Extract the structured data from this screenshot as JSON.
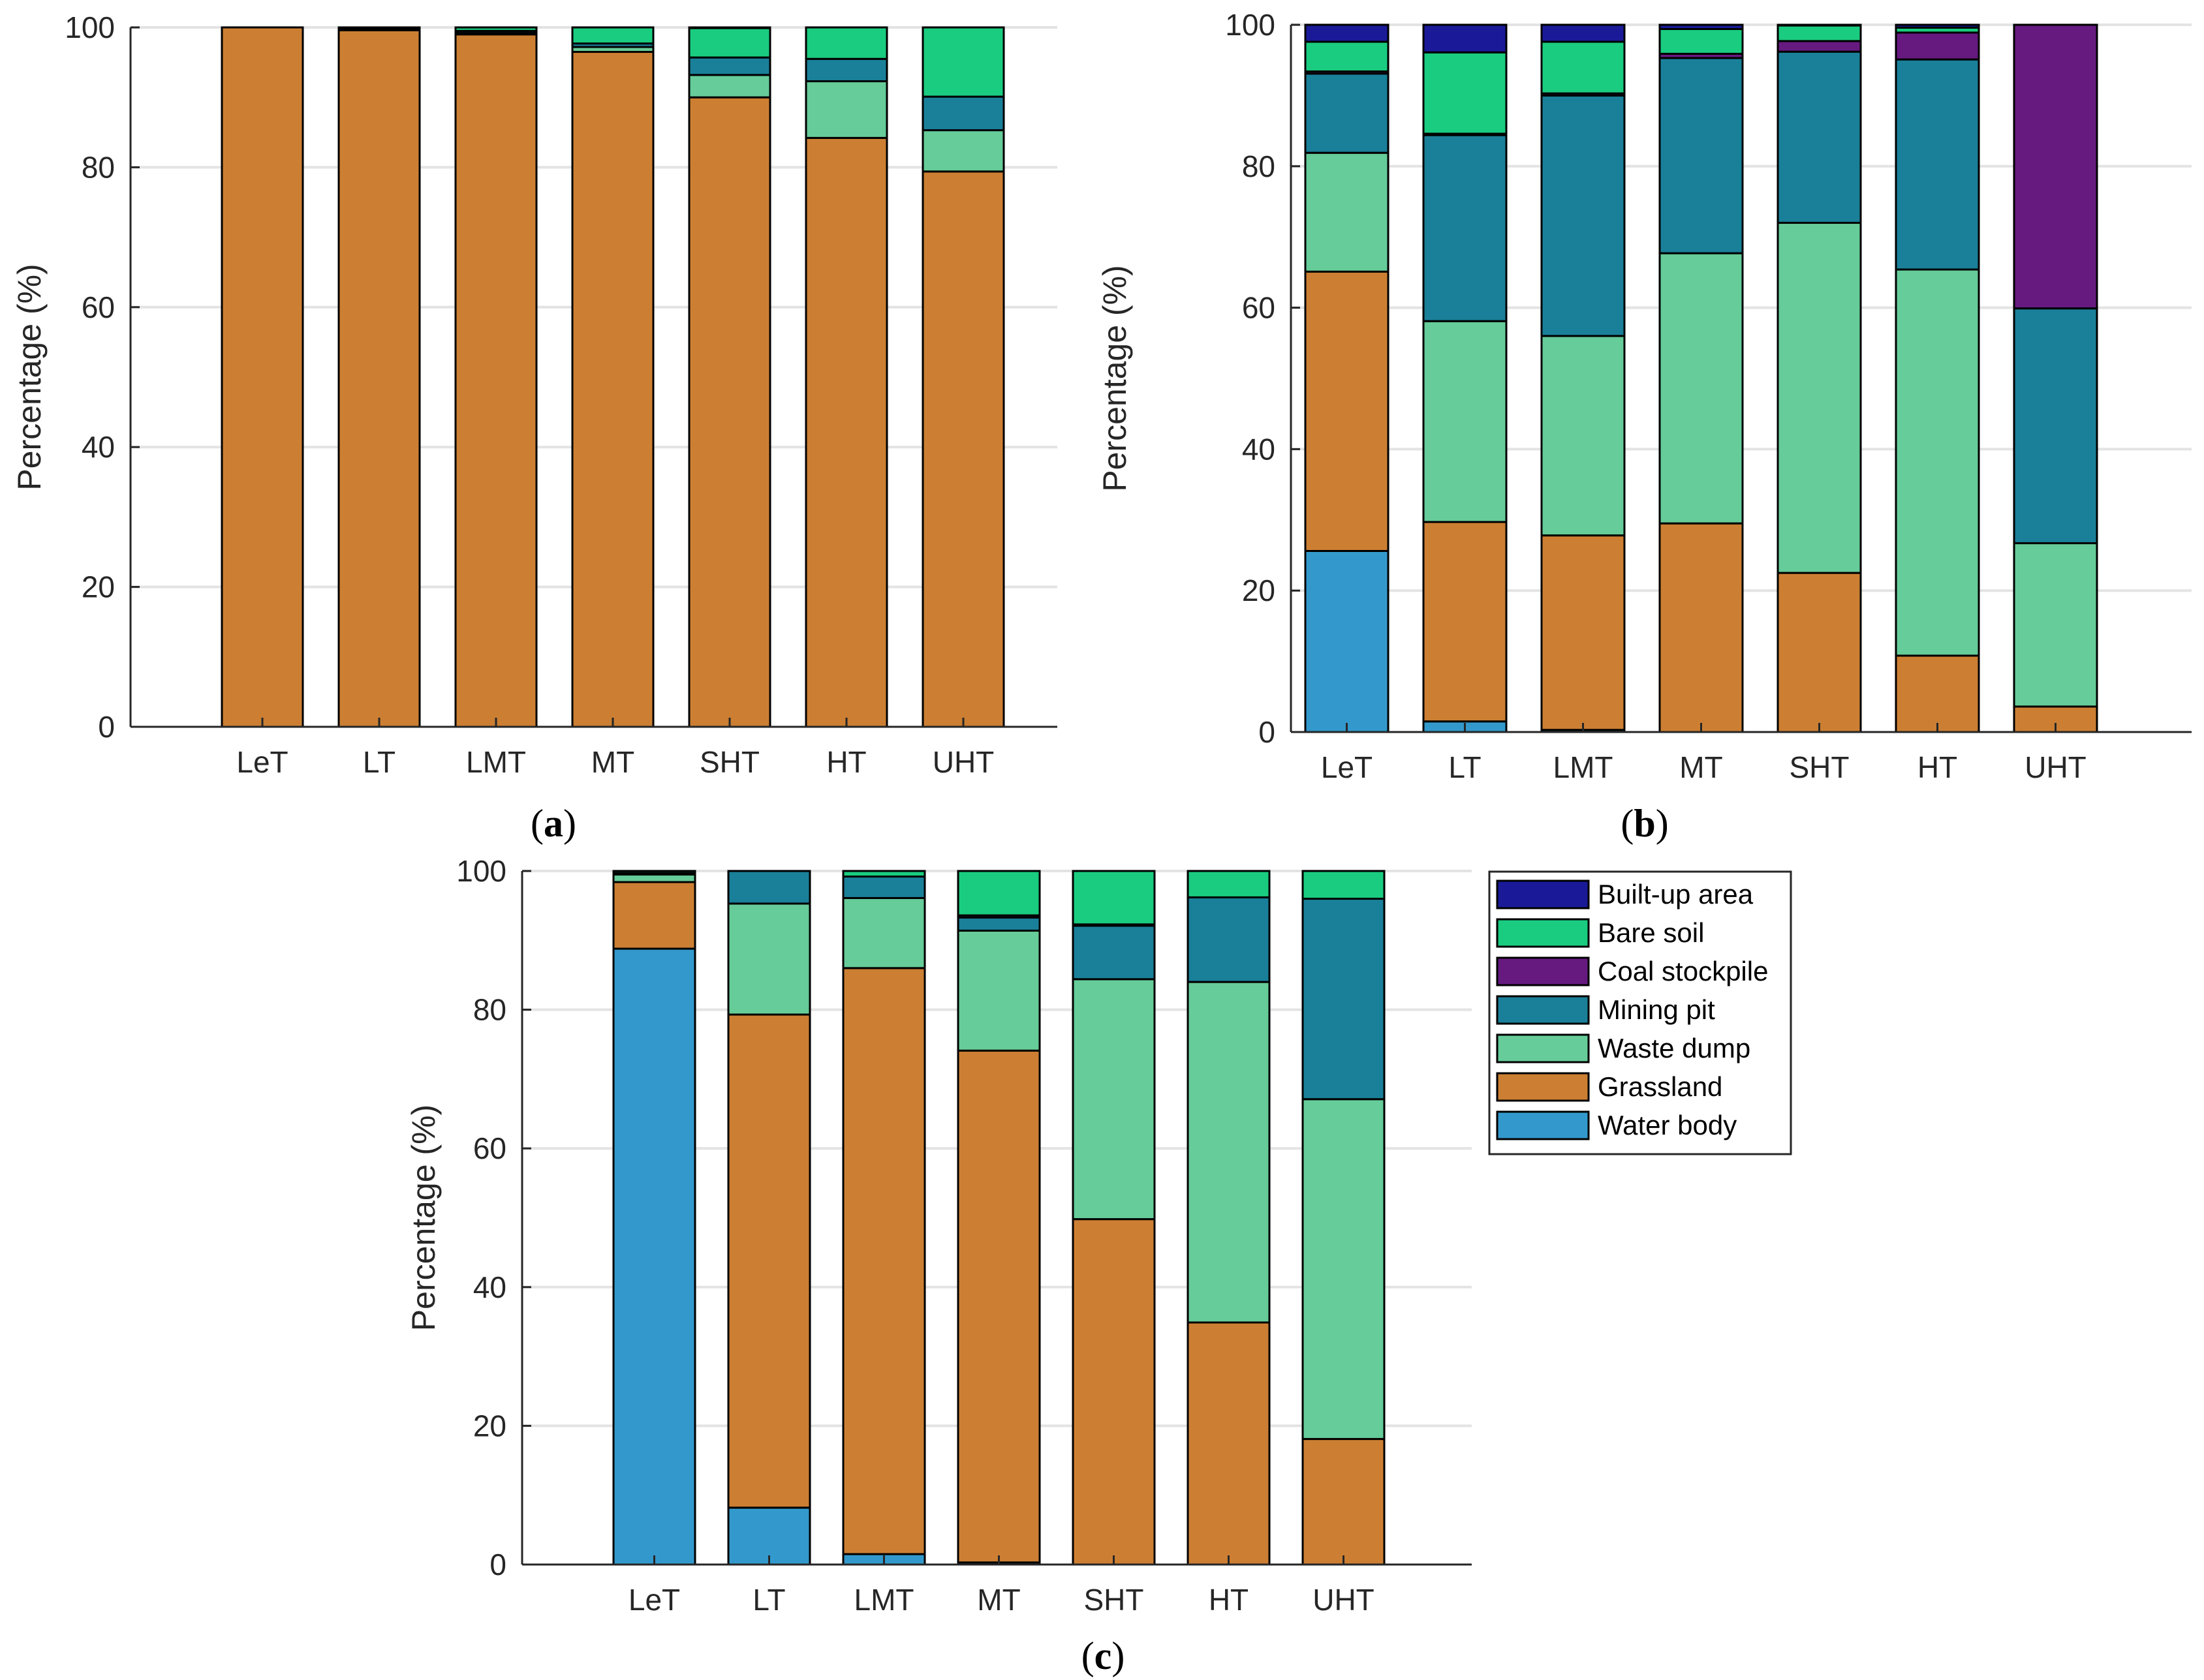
{
  "figure": {
    "legend_title_entries": [
      "Built-up area",
      "Bare soil",
      "Coal stockpile",
      "Mining pit",
      "Waste dump",
      "Grassland",
      "Water body"
    ]
  },
  "chart_data": [
    {
      "type": "bar",
      "stacked": true,
      "panel_label": "(a)",
      "categories": [
        "LeT",
        "LT",
        "LMT",
        "MT",
        "SHT",
        "HT",
        "UHT"
      ],
      "ylabel": "Percentage (%)",
      "xlabel": "",
      "ylim": [
        0,
        100
      ],
      "yticks": [
        0,
        20,
        40,
        60,
        80,
        100
      ],
      "grid": "y",
      "series": [
        {
          "name": "Water body",
          "color": "#3399cc",
          "values": [
            0,
            0,
            0,
            0,
            0,
            0,
            0
          ]
        },
        {
          "name": "Grassland",
          "color": "#cc7f33",
          "values": [
            100,
            99.6,
            99.0,
            96.5,
            90.0,
            84.2,
            79.4
          ]
        },
        {
          "name": "Waste dump",
          "color": "#66cc99",
          "values": [
            0,
            0.1,
            0.2,
            0.7,
            3.2,
            8.1,
            5.9
          ]
        },
        {
          "name": "Mining pit",
          "color": "#1a8099",
          "values": [
            0,
            0.1,
            0.3,
            0.5,
            2.5,
            3.2,
            4.8
          ]
        },
        {
          "name": "Coal stockpile",
          "color": "#661a80",
          "values": [
            0,
            0,
            0,
            0,
            0,
            0,
            0
          ]
        },
        {
          "name": "Bare soil",
          "color": "#1acc80",
          "values": [
            0,
            0.1,
            0.5,
            2.3,
            4.2,
            4.5,
            9.9
          ]
        },
        {
          "name": "Built-up area",
          "color": "#1a1a99",
          "values": [
            0,
            0.1,
            0,
            0,
            0.1,
            0,
            0
          ]
        }
      ]
    },
    {
      "type": "bar",
      "stacked": true,
      "panel_label": "(b)",
      "categories": [
        "LeT",
        "LT",
        "LMT",
        "MT",
        "SHT",
        "HT",
        "UHT"
      ],
      "ylabel": "Percentage (%)",
      "xlabel": "",
      "ylim": [
        0,
        100
      ],
      "yticks": [
        0,
        20,
        40,
        60,
        80,
        100
      ],
      "grid": "y",
      "series": [
        {
          "name": "Water body",
          "color": "#3399cc",
          "values": [
            25.6,
            1.5,
            0.3,
            0,
            0,
            0,
            0
          ]
        },
        {
          "name": "Grassland",
          "color": "#cc7f33",
          "values": [
            39.5,
            28.2,
            27.5,
            29.5,
            22.5,
            10.8,
            3.6
          ]
        },
        {
          "name": "Waste dump",
          "color": "#66cc99",
          "values": [
            16.8,
            28.4,
            28.2,
            38.2,
            49.5,
            54.6,
            23.1
          ]
        },
        {
          "name": "Mining pit",
          "color": "#1a8099",
          "values": [
            11.2,
            26.3,
            34.0,
            27.6,
            24.2,
            29.7,
            33.2
          ]
        },
        {
          "name": "Coal stockpile",
          "color": "#661a80",
          "values": [
            0.3,
            0.2,
            0.3,
            0.6,
            1.5,
            3.8,
            40.1
          ]
        },
        {
          "name": "Bare soil",
          "color": "#1acc80",
          "values": [
            4.2,
            11.5,
            7.3,
            3.5,
            2.2,
            0.7,
            0
          ]
        },
        {
          "name": "Built-up area",
          "color": "#1a1a99",
          "values": [
            2.4,
            3.9,
            2.4,
            0.6,
            0.1,
            0.4,
            0
          ]
        }
      ]
    },
    {
      "type": "bar",
      "stacked": true,
      "panel_label": "(c)",
      "categories": [
        "LeT",
        "LT",
        "LMT",
        "MT",
        "SHT",
        "HT",
        "UHT"
      ],
      "ylabel": "Percentage (%)",
      "xlabel": "",
      "ylim": [
        0,
        100
      ],
      "yticks": [
        0,
        20,
        40,
        60,
        80,
        100
      ],
      "grid": "y",
      "series": [
        {
          "name": "Water body",
          "color": "#3399cc",
          "values": [
            88.8,
            8.2,
            1.5,
            0.3,
            0,
            0,
            0
          ]
        },
        {
          "name": "Grassland",
          "color": "#cc7f33",
          "values": [
            9.6,
            71.1,
            84.5,
            73.8,
            49.8,
            34.9,
            18.1
          ]
        },
        {
          "name": "Waste dump",
          "color": "#66cc99",
          "values": [
            1.1,
            16.0,
            10.1,
            17.3,
            34.6,
            49.1,
            49.0
          ]
        },
        {
          "name": "Mining pit",
          "color": "#1a8099",
          "values": [
            0.2,
            4.7,
            3.1,
            1.9,
            7.7,
            12.2,
            28.9
          ]
        },
        {
          "name": "Coal stockpile",
          "color": "#661a80",
          "values": [
            0,
            0,
            0,
            0.3,
            0.2,
            0,
            0
          ]
        },
        {
          "name": "Bare soil",
          "color": "#1acc80",
          "values": [
            0.3,
            0,
            0.8,
            6.4,
            7.7,
            3.8,
            4.0
          ]
        },
        {
          "name": "Built-up area",
          "color": "#1a1a99",
          "values": [
            0,
            0,
            0,
            0,
            0,
            0,
            0
          ]
        }
      ]
    }
  ]
}
